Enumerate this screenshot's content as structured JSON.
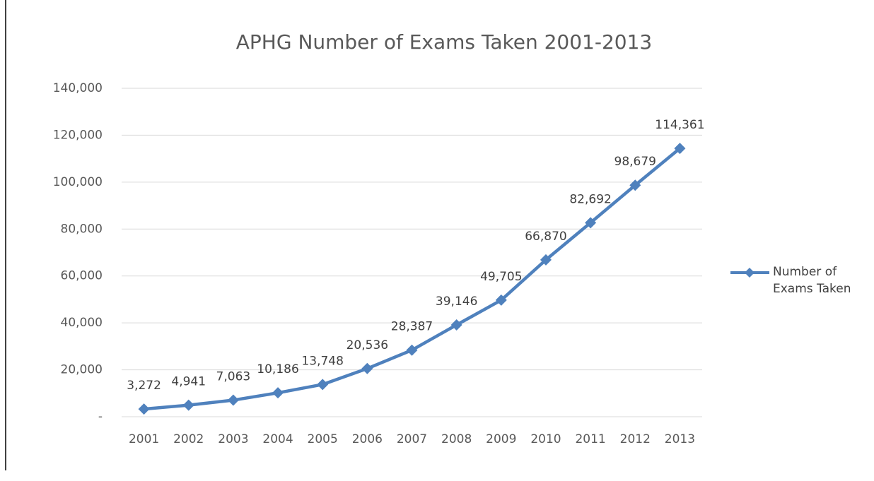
{
  "chart_data": {
    "type": "line",
    "title": "APHG Number of Exams Taken 2001-2013",
    "categories": [
      "2001",
      "2002",
      "2003",
      "2004",
      "2005",
      "2006",
      "2007",
      "2008",
      "2009",
      "2010",
      "2011",
      "2012",
      "2013"
    ],
    "series": [
      {
        "name": "Number of Exams Taken",
        "color": "#4f81bd",
        "values": [
          3272,
          4941,
          7063,
          10186,
          13748,
          20536,
          28387,
          39146,
          49705,
          66870,
          82692,
          98679,
          114361
        ],
        "value_labels": [
          "3,272",
          "4,941",
          "7,063",
          "10,186",
          "13,748",
          "20,536",
          "28,387",
          "39,146",
          "49,705",
          "66,870",
          "82,692",
          "98,679",
          "114,361"
        ]
      }
    ],
    "ylim": [
      0,
      140000
    ],
    "yticks": [
      {
        "value": 0,
        "label": "-"
      },
      {
        "value": 20000,
        "label": "20,000"
      },
      {
        "value": 40000,
        "label": "40,000"
      },
      {
        "value": 60000,
        "label": "60,000"
      },
      {
        "value": 80000,
        "label": "80,000"
      },
      {
        "value": 100000,
        "label": "100,000"
      },
      {
        "value": 120000,
        "label": "120,000"
      },
      {
        "value": 140000,
        "label": "140,000"
      }
    ],
    "grid": true,
    "legend": "right"
  }
}
